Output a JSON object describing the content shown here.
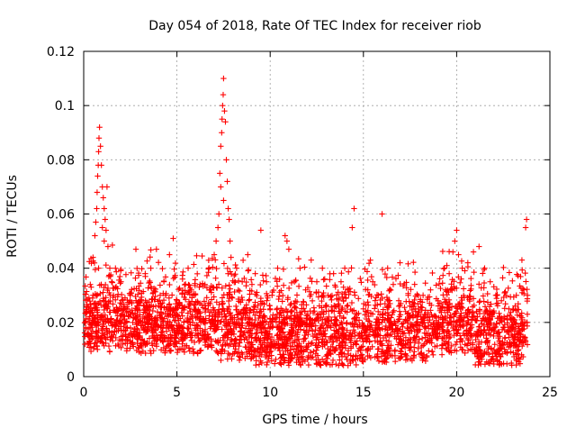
{
  "chart_data": {
    "type": "scatter",
    "title": "Day 054 of 2018, Rate Of TEC Index for receiver riob",
    "xlabel": "GPS time / hours",
    "ylabel": "ROTI / TECUs",
    "xlim": [
      0,
      25
    ],
    "ylim": [
      0,
      0.12
    ],
    "x_ticks": [
      0,
      5,
      10,
      15,
      20,
      25
    ],
    "x_tick_labels": [
      "0",
      "5",
      "10",
      "15",
      "20",
      "25"
    ],
    "y_ticks": [
      0,
      0.02,
      0.04,
      0.06,
      0.08,
      0.1,
      0.12
    ],
    "y_tick_labels": [
      "0",
      "0.02",
      "0.04",
      "0.06",
      "0.08",
      "0.1",
      "0.12"
    ],
    "grid": true,
    "marker": "+",
    "color": "#ff0000",
    "series": [
      {
        "name": "ROTI",
        "points": [
          [
            0.2,
            0.012
          ],
          [
            0.3,
            0.02
          ],
          [
            0.4,
            0.033
          ],
          [
            0.5,
            0.044
          ],
          [
            0.6,
            0.052
          ],
          [
            0.65,
            0.057
          ],
          [
            0.7,
            0.062
          ],
          [
            0.72,
            0.068
          ],
          [
            0.75,
            0.074
          ],
          [
            0.78,
            0.078
          ],
          [
            0.8,
            0.083
          ],
          [
            0.82,
            0.088
          ],
          [
            0.85,
            0.092
          ],
          [
            0.9,
            0.085
          ],
          [
            0.95,
            0.078
          ],
          [
            1.0,
            0.07
          ],
          [
            1.05,
            0.066
          ],
          [
            1.1,
            0.062
          ],
          [
            1.15,
            0.058
          ],
          [
            1.2,
            0.054
          ],
          [
            1.25,
            0.07
          ],
          [
            1.3,
            0.048
          ],
          [
            1.4,
            0.04
          ],
          [
            1.5,
            0.035
          ],
          [
            1.6,
            0.03
          ],
          [
            0.5,
            0.03
          ],
          [
            0.6,
            0.025
          ],
          [
            0.8,
            0.04
          ],
          [
            1.0,
            0.055
          ],
          [
            1.1,
            0.05
          ],
          [
            2.0,
            0.035
          ],
          [
            2.5,
            0.03
          ],
          [
            2.8,
            0.047
          ],
          [
            3.0,
            0.028
          ],
          [
            3.3,
            0.038
          ],
          [
            3.6,
            0.04
          ],
          [
            3.9,
            0.047
          ],
          [
            4.1,
            0.03
          ],
          [
            4.3,
            0.035
          ],
          [
            4.6,
            0.045
          ],
          [
            4.8,
            0.051
          ],
          [
            5.0,
            0.028
          ],
          [
            5.3,
            0.036
          ],
          [
            5.6,
            0.04
          ],
          [
            5.9,
            0.03
          ],
          [
            6.2,
            0.033
          ],
          [
            6.5,
            0.034
          ],
          [
            6.8,
            0.032
          ],
          [
            7.0,
            0.045
          ],
          [
            7.1,
            0.05
          ],
          [
            7.2,
            0.055
          ],
          [
            7.25,
            0.06
          ],
          [
            7.3,
            0.075
          ],
          [
            7.35,
            0.085
          ],
          [
            7.4,
            0.09
          ],
          [
            7.42,
            0.095
          ],
          [
            7.45,
            0.1
          ],
          [
            7.48,
            0.104
          ],
          [
            7.5,
            0.11
          ],
          [
            7.55,
            0.098
          ],
          [
            7.6,
            0.094
          ],
          [
            7.65,
            0.08
          ],
          [
            7.7,
            0.072
          ],
          [
            7.75,
            0.062
          ],
          [
            7.8,
            0.058
          ],
          [
            7.85,
            0.05
          ],
          [
            7.9,
            0.044
          ],
          [
            7.35,
            0.07
          ],
          [
            7.5,
            0.065
          ],
          [
            8.2,
            0.04
          ],
          [
            8.5,
            0.035
          ],
          [
            8.8,
            0.045
          ],
          [
            9.2,
            0.038
          ],
          [
            9.5,
            0.054
          ],
          [
            9.8,
            0.035
          ],
          [
            10.1,
            0.03
          ],
          [
            10.4,
            0.04
          ],
          [
            10.8,
            0.052
          ],
          [
            10.9,
            0.05
          ],
          [
            11.0,
            0.047
          ],
          [
            11.3,
            0.035
          ],
          [
            11.6,
            0.04
          ],
          [
            11.9,
            0.032
          ],
          [
            12.2,
            0.043
          ],
          [
            12.5,
            0.035
          ],
          [
            12.8,
            0.04
          ],
          [
            13.1,
            0.03
          ],
          [
            13.4,
            0.038
          ],
          [
            13.8,
            0.035
          ],
          [
            14.0,
            0.04
          ],
          [
            14.2,
            0.032
          ],
          [
            14.4,
            0.055
          ],
          [
            14.5,
            0.062
          ],
          [
            15.0,
            0.025
          ],
          [
            15.5,
            0.035
          ],
          [
            15.8,
            0.03
          ],
          [
            16.0,
            0.06
          ],
          [
            16.3,
            0.04
          ],
          [
            16.6,
            0.034
          ],
          [
            17.0,
            0.027
          ],
          [
            17.4,
            0.03
          ],
          [
            17.8,
            0.025
          ],
          [
            18.2,
            0.03
          ],
          [
            18.6,
            0.032
          ],
          [
            19.0,
            0.028
          ],
          [
            19.4,
            0.032
          ],
          [
            19.6,
            0.038
          ],
          [
            19.8,
            0.046
          ],
          [
            19.9,
            0.05
          ],
          [
            20.0,
            0.054
          ],
          [
            20.1,
            0.045
          ],
          [
            20.3,
            0.04
          ],
          [
            20.6,
            0.042
          ],
          [
            20.9,
            0.046
          ],
          [
            21.2,
            0.048
          ],
          [
            21.5,
            0.04
          ],
          [
            21.8,
            0.035
          ],
          [
            22.1,
            0.03
          ],
          [
            22.4,
            0.028
          ],
          [
            22.8,
            0.025
          ],
          [
            23.2,
            0.03
          ],
          [
            23.5,
            0.043
          ],
          [
            23.7,
            0.055
          ],
          [
            23.75,
            0.058
          ],
          [
            23.6,
            0.032
          ],
          [
            23.8,
            0.03
          ]
        ]
      }
    ]
  }
}
